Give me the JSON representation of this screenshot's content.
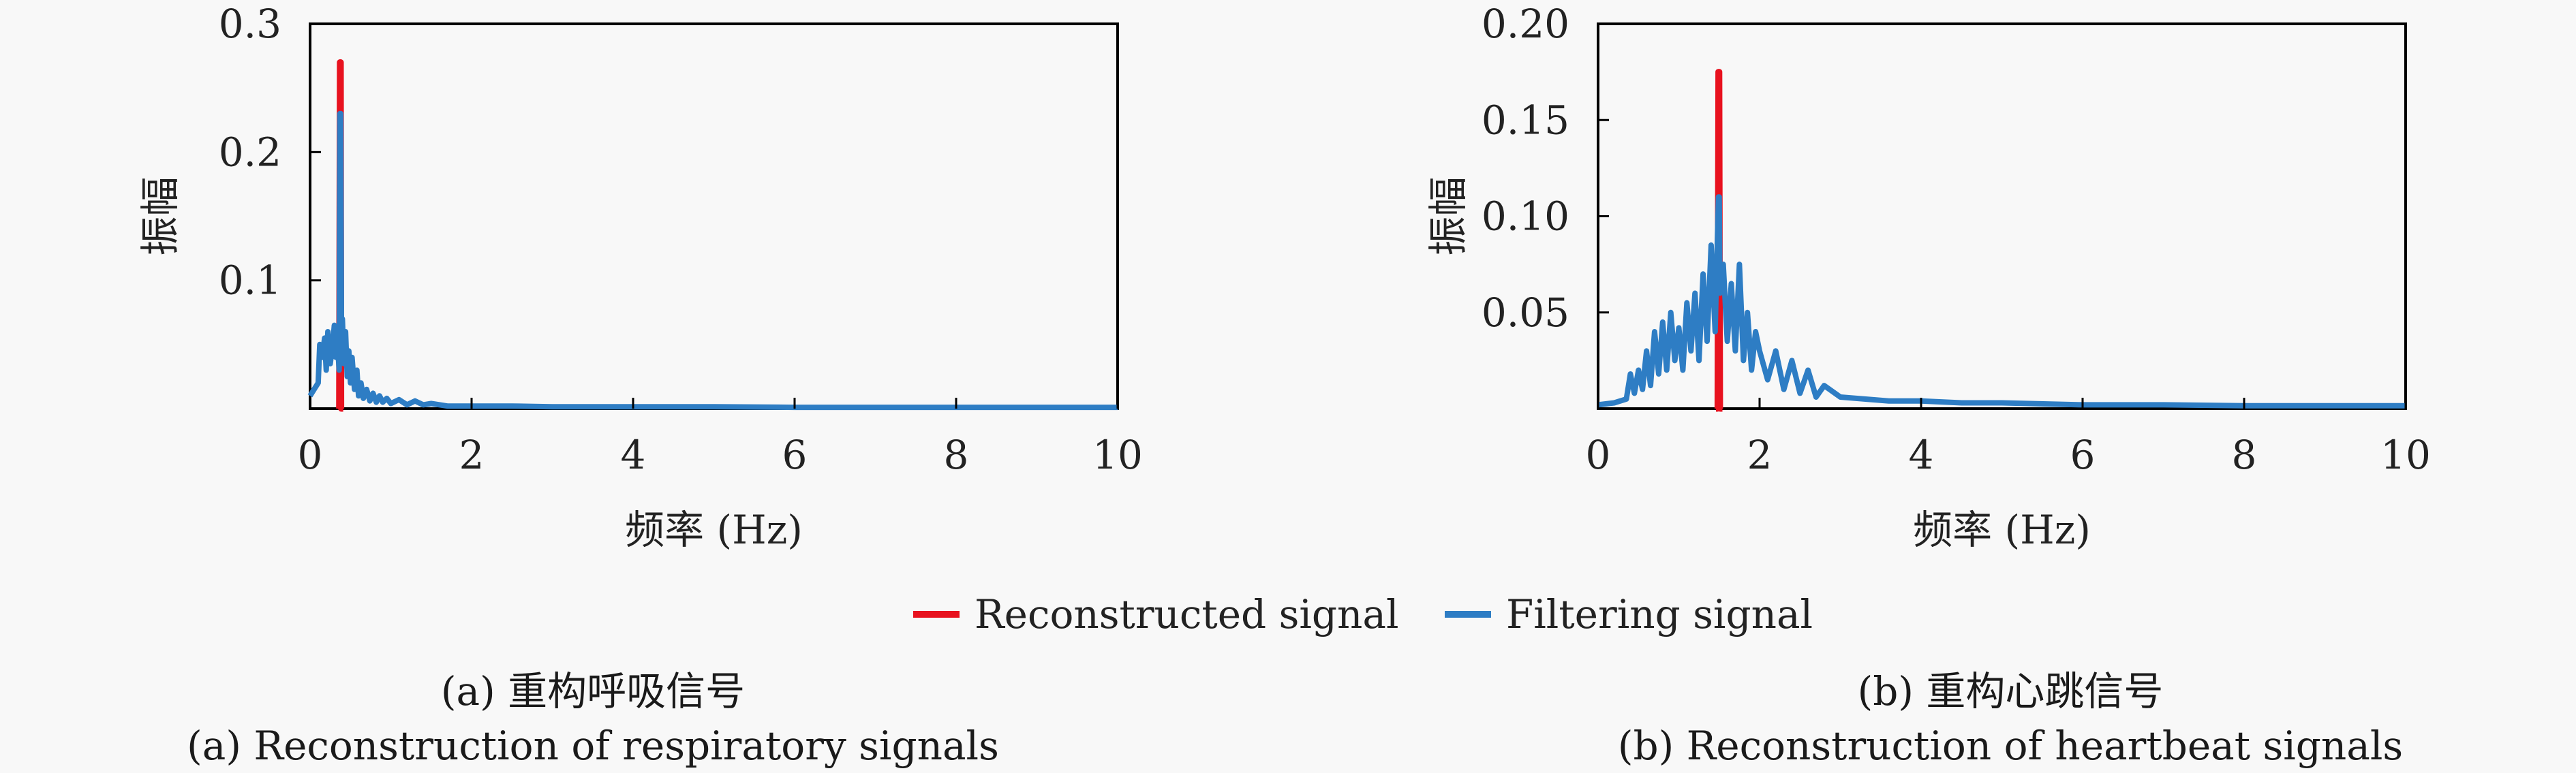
{
  "chart_data": [
    {
      "type": "line",
      "title": "",
      "xlabel": "频率 (Hz)",
      "ylabel": "振幅",
      "xlim": [
        0,
        10
      ],
      "ylim": [
        0,
        0.3
      ],
      "xticks": [
        "0",
        "2",
        "4",
        "6",
        "8",
        "10"
      ],
      "xtick_values": [
        0,
        2,
        4,
        6,
        8,
        10
      ],
      "yticks": [
        "0.1",
        "0.2",
        "0.3"
      ],
      "ytick_values": [
        0.1,
        0.2,
        0.3
      ],
      "grid": false,
      "caption_zh": "(a) 重构呼吸信号",
      "caption_en": "(a) Reconstruction of respiratory signals",
      "series": [
        {
          "name": "Reconstructed signal",
          "color": "#e8121f",
          "x": [
            0.36,
            0.37,
            0.38,
            0.385,
            0.39,
            0.4,
            0.41
          ],
          "y": [
            0.0,
            0.27,
            0.27,
            0.0,
            0.0,
            0.0,
            0.0
          ]
        },
        {
          "name": "Filtering signal",
          "color": "#2e7dc4",
          "x": [
            0.0,
            0.05,
            0.1,
            0.12,
            0.15,
            0.18,
            0.2,
            0.22,
            0.25,
            0.28,
            0.3,
            0.32,
            0.34,
            0.36,
            0.37,
            0.38,
            0.39,
            0.4,
            0.42,
            0.44,
            0.46,
            0.48,
            0.5,
            0.52,
            0.55,
            0.58,
            0.6,
            0.63,
            0.66,
            0.7,
            0.74,
            0.78,
            0.82,
            0.86,
            0.9,
            0.95,
            1.0,
            1.1,
            1.2,
            1.3,
            1.4,
            1.5,
            1.7,
            2.0,
            2.5,
            3.0,
            4.0,
            5.0,
            6.0,
            7.0,
            8.0,
            9.0,
            10.0
          ],
          "y": [
            0.01,
            0.015,
            0.02,
            0.05,
            0.04,
            0.055,
            0.03,
            0.06,
            0.035,
            0.05,
            0.065,
            0.04,
            0.05,
            0.03,
            0.23,
            0.23,
            0.04,
            0.07,
            0.035,
            0.06,
            0.025,
            0.045,
            0.02,
            0.04,
            0.015,
            0.03,
            0.01,
            0.02,
            0.008,
            0.015,
            0.006,
            0.012,
            0.005,
            0.01,
            0.005,
            0.008,
            0.004,
            0.007,
            0.003,
            0.006,
            0.003,
            0.004,
            0.002,
            0.002,
            0.002,
            0.0015,
            0.0015,
            0.0015,
            0.001,
            0.001,
            0.001,
            0.001,
            0.001
          ]
        }
      ]
    },
    {
      "type": "line",
      "title": "",
      "xlabel": "频率 (Hz)",
      "ylabel": "振幅",
      "xlim": [
        0,
        10
      ],
      "ylim": [
        0,
        0.2
      ],
      "xticks": [
        "0",
        "2",
        "4",
        "6",
        "8",
        "10"
      ],
      "xtick_values": [
        0,
        2,
        4,
        6,
        8,
        10
      ],
      "yticks": [
        "0.05",
        "0.10",
        "0.15",
        "0.20"
      ],
      "ytick_values": [
        0.05,
        0.1,
        0.15,
        0.2
      ],
      "grid": false,
      "caption_zh": "(b) 重构心跳信号",
      "caption_en": "(b) Reconstruction of heartbeat signals",
      "series": [
        {
          "name": "Reconstructed signal",
          "color": "#e8121f",
          "x": [
            1.46,
            1.48,
            1.49,
            1.5,
            1.51,
            1.52,
            1.54
          ],
          "y": [
            0.0,
            0.0,
            0.175,
            0.175,
            0.0,
            0.0,
            0.0
          ]
        },
        {
          "name": "Filtering signal",
          "color": "#2e7dc4",
          "x": [
            0.0,
            0.2,
            0.35,
            0.4,
            0.45,
            0.5,
            0.55,
            0.6,
            0.65,
            0.7,
            0.75,
            0.8,
            0.85,
            0.9,
            0.95,
            1.0,
            1.05,
            1.1,
            1.15,
            1.2,
            1.25,
            1.3,
            1.35,
            1.4,
            1.45,
            1.49,
            1.5,
            1.51,
            1.55,
            1.6,
            1.65,
            1.7,
            1.75,
            1.8,
            1.85,
            1.9,
            1.95,
            2.0,
            2.1,
            2.2,
            2.3,
            2.4,
            2.5,
            2.6,
            2.7,
            2.8,
            3.0,
            3.3,
            3.6,
            4.0,
            4.5,
            5.0,
            6.0,
            7.0,
            8.0,
            9.0,
            10.0
          ],
          "y": [
            0.002,
            0.003,
            0.005,
            0.018,
            0.008,
            0.02,
            0.01,
            0.03,
            0.012,
            0.04,
            0.018,
            0.045,
            0.02,
            0.05,
            0.025,
            0.042,
            0.02,
            0.055,
            0.03,
            0.06,
            0.025,
            0.07,
            0.035,
            0.085,
            0.04,
            0.11,
            0.11,
            0.06,
            0.075,
            0.035,
            0.065,
            0.03,
            0.075,
            0.025,
            0.05,
            0.02,
            0.04,
            0.03,
            0.015,
            0.03,
            0.01,
            0.025,
            0.008,
            0.02,
            0.006,
            0.012,
            0.006,
            0.005,
            0.004,
            0.004,
            0.003,
            0.003,
            0.002,
            0.002,
            0.0015,
            0.0015,
            0.0015
          ]
        }
      ]
    }
  ],
  "legend": {
    "items": [
      {
        "label": "Reconstructed signal",
        "color": "#e8121f"
      },
      {
        "label": "Filtering signal",
        "color": "#2e7dc4"
      }
    ]
  }
}
